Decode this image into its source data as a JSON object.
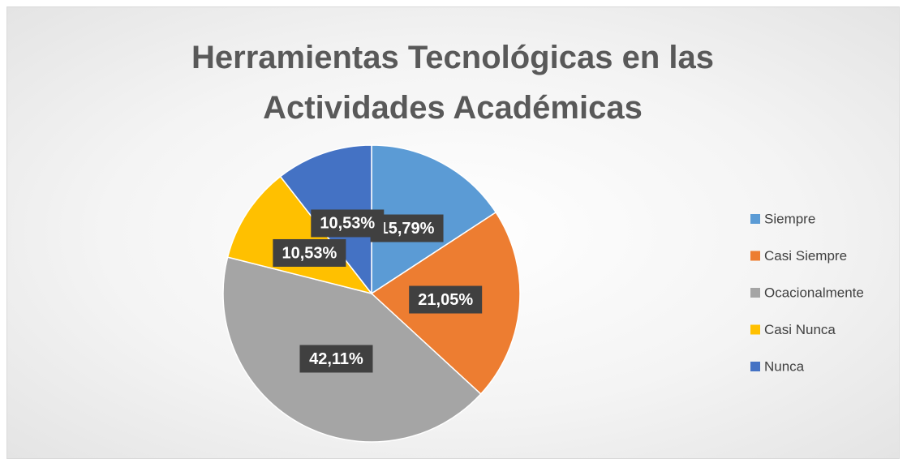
{
  "chart_data": {
    "type": "pie",
    "title": "Herramientas Tecnológicas en las Actividades Académicas",
    "categories": [
      "Siempre",
      "Casi Siempre",
      "Ocacionalmente",
      "Casi Nunca",
      "Nunca"
    ],
    "values": [
      15.79,
      21.05,
      42.11,
      10.53,
      10.53
    ],
    "value_labels": [
      "15,79%",
      "21,05%",
      "42,11%",
      "10,53%",
      "10,53%"
    ],
    "colors": [
      "#5b9bd5",
      "#ed7d31",
      "#a5a5a5",
      "#ffc000",
      "#4472c4"
    ],
    "legend": "right"
  }
}
